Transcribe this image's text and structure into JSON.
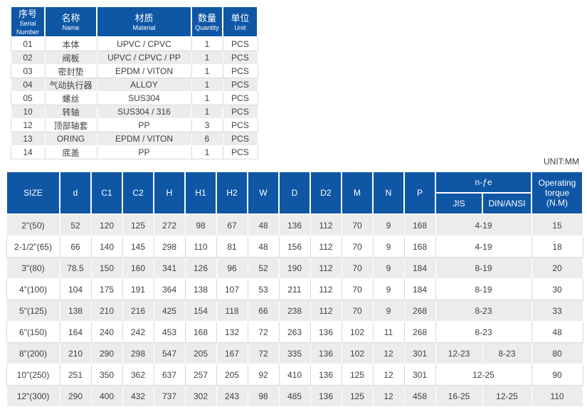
{
  "parts_table": {
    "headers": [
      {
        "zh": "序号",
        "en": "Serial Number"
      },
      {
        "zh": "名称",
        "en": "Name"
      },
      {
        "zh": "材质",
        "en": "Material"
      },
      {
        "zh": "数量",
        "en": "Quantity"
      },
      {
        "zh": "单位",
        "en": "Unit"
      }
    ],
    "rows": [
      [
        "01",
        "本体",
        "UPVC / CPVC",
        "1",
        "PCS"
      ],
      [
        "02",
        "阀板",
        "UPVC / CPVC / PP",
        "1",
        "PCS"
      ],
      [
        "03",
        "密封垫",
        "EPDM / VITON",
        "1",
        "PCS"
      ],
      [
        "04",
        "气动执行器",
        "ALLOY",
        "1",
        "PCS"
      ],
      [
        "05",
        "螺丝",
        "SUS304",
        "1",
        "PCS"
      ],
      [
        "10",
        "转轴",
        "SUS304 / 316",
        "1",
        "PCS"
      ],
      [
        "12",
        "顶部轴套",
        "PP",
        "3",
        "PCS"
      ],
      [
        "13",
        "ORING",
        "EPDM / VITON",
        "6",
        "PCS"
      ],
      [
        "14",
        "底盖",
        "PP",
        "1",
        "PCS"
      ]
    ]
  },
  "unit_note": "UNIT:MM",
  "dims_table": {
    "headers": [
      "SIZE",
      "d",
      "C1",
      "C2",
      "H",
      "H1",
      "H2",
      "W",
      "D",
      "D2",
      "M",
      "N",
      "P"
    ],
    "holes_label": "n-ƒe",
    "holes_sub": [
      "JIS",
      "DIN/ANSI"
    ],
    "torque_label": "Operating torque (N.M)",
    "rows": [
      [
        {
          "t": "2\"(50)"
        },
        {
          "t": "52"
        },
        {
          "t": "120"
        },
        {
          "t": "125"
        },
        {
          "t": "272"
        },
        {
          "t": "98"
        },
        {
          "t": "67"
        },
        {
          "t": "48"
        },
        {
          "t": "136"
        },
        {
          "t": "112"
        },
        {
          "t": "70"
        },
        {
          "t": "9"
        },
        {
          "t": "168"
        },
        {
          "t": "4-19",
          "s": 2
        },
        {
          "t": "15"
        }
      ],
      [
        {
          "t": "2-1/2\"(65)"
        },
        {
          "t": "66"
        },
        {
          "t": "140"
        },
        {
          "t": "145"
        },
        {
          "t": "298"
        },
        {
          "t": "110"
        },
        {
          "t": "81"
        },
        {
          "t": "48"
        },
        {
          "t": "156"
        },
        {
          "t": "112"
        },
        {
          "t": "70"
        },
        {
          "t": "9"
        },
        {
          "t": "168"
        },
        {
          "t": "4-19",
          "s": 2
        },
        {
          "t": "18"
        }
      ],
      [
        {
          "t": "3\"(80)"
        },
        {
          "t": "78.5"
        },
        {
          "t": "150"
        },
        {
          "t": "160"
        },
        {
          "t": "341"
        },
        {
          "t": "126"
        },
        {
          "t": "96"
        },
        {
          "t": "52"
        },
        {
          "t": "190"
        },
        {
          "t": "112"
        },
        {
          "t": "70"
        },
        {
          "t": "9"
        },
        {
          "t": "184"
        },
        {
          "t": "8-19",
          "s": 2
        },
        {
          "t": "20"
        }
      ],
      [
        {
          "t": "4\"(100)"
        },
        {
          "t": "104"
        },
        {
          "t": "175"
        },
        {
          "t": "191"
        },
        {
          "t": "364"
        },
        {
          "t": "138"
        },
        {
          "t": "107"
        },
        {
          "t": "53"
        },
        {
          "t": "211"
        },
        {
          "t": "112"
        },
        {
          "t": "70"
        },
        {
          "t": "9"
        },
        {
          "t": "184"
        },
        {
          "t": "8-19",
          "s": 2
        },
        {
          "t": "30"
        }
      ],
      [
        {
          "t": "5\"(125)"
        },
        {
          "t": "138"
        },
        {
          "t": "210"
        },
        {
          "t": "216"
        },
        {
          "t": "425"
        },
        {
          "t": "154"
        },
        {
          "t": "118"
        },
        {
          "t": "66"
        },
        {
          "t": "238"
        },
        {
          "t": "112"
        },
        {
          "t": "70"
        },
        {
          "t": "9"
        },
        {
          "t": "268"
        },
        {
          "t": "8-23",
          "s": 2
        },
        {
          "t": "33"
        }
      ],
      [
        {
          "t": "6\"(150)"
        },
        {
          "t": "164"
        },
        {
          "t": "240"
        },
        {
          "t": "242"
        },
        {
          "t": "453"
        },
        {
          "t": "168"
        },
        {
          "t": "132"
        },
        {
          "t": "72"
        },
        {
          "t": "263"
        },
        {
          "t": "136"
        },
        {
          "t": "102"
        },
        {
          "t": "11"
        },
        {
          "t": "268"
        },
        {
          "t": "8-23",
          "s": 2
        },
        {
          "t": "48"
        }
      ],
      [
        {
          "t": "8\"(200)"
        },
        {
          "t": "210"
        },
        {
          "t": "290"
        },
        {
          "t": "298"
        },
        {
          "t": "547"
        },
        {
          "t": "205"
        },
        {
          "t": "167"
        },
        {
          "t": "72"
        },
        {
          "t": "335"
        },
        {
          "t": "136"
        },
        {
          "t": "102"
        },
        {
          "t": "12"
        },
        {
          "t": "301"
        },
        {
          "t": "12-23"
        },
        {
          "t": "8-23"
        },
        {
          "t": "80"
        }
      ],
      [
        {
          "t": "10\"(250)"
        },
        {
          "t": "251"
        },
        {
          "t": "350"
        },
        {
          "t": "362"
        },
        {
          "t": "637"
        },
        {
          "t": "257"
        },
        {
          "t": "205"
        },
        {
          "t": "92"
        },
        {
          "t": "410"
        },
        {
          "t": "136"
        },
        {
          "t": "125"
        },
        {
          "t": "12"
        },
        {
          "t": "301"
        },
        {
          "t": "12-25",
          "s": 2
        },
        {
          "t": "90"
        }
      ],
      [
        {
          "t": "12\"(300)"
        },
        {
          "t": "290"
        },
        {
          "t": "400"
        },
        {
          "t": "432"
        },
        {
          "t": "737"
        },
        {
          "t": "302"
        },
        {
          "t": "243"
        },
        {
          "t": "98"
        },
        {
          "t": "485"
        },
        {
          "t": "136"
        },
        {
          "t": "125"
        },
        {
          "t": "12"
        },
        {
          "t": "458"
        },
        {
          "t": "16-25"
        },
        {
          "t": "12-25"
        },
        {
          "t": "110"
        }
      ]
    ]
  }
}
